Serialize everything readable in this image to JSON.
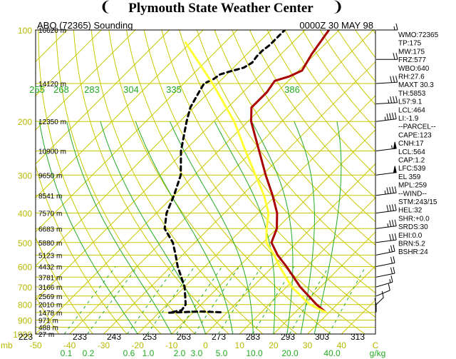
{
  "header": {
    "title": "Plymouth State Weather Center",
    "left_logo": "pinwheel-icon",
    "right_logo": "pinwheel-icon"
  },
  "colors": {
    "background": "#ffffff",
    "isobar_isotherm_grid": "#c8c800",
    "dry_adiabat": "#c8c800",
    "moist_adiabat": "#22aa22",
    "mixing_ratio": "#22aa22",
    "temperature": "#aa0000",
    "dewpoint": "#000000",
    "parcel": "#ffff33",
    "wind_barb": "#000000"
  },
  "chart_data": {
    "type": "line",
    "title_left": "ABQ (72365) Sounding",
    "title_right": "0000Z 30 MAY 98",
    "y_scale": "log-pressure",
    "ylim": [
      1000,
      100
    ],
    "xlim": [
      -50,
      50
    ],
    "pressure_ticks": [
      {
        "p": 100,
        "label": "100"
      },
      {
        "p": 200,
        "label": "200"
      },
      {
        "p": 300,
        "label": "300"
      },
      {
        "p": 400,
        "label": "400"
      },
      {
        "p": 500,
        "label": "500"
      },
      {
        "p": 600,
        "label": "600"
      },
      {
        "p": 700,
        "label": "700"
      },
      {
        "p": 800,
        "label": "800"
      },
      {
        "p": 900,
        "label": "900"
      },
      {
        "p": 1000,
        "label": "1000"
      }
    ],
    "height_labels": [
      {
        "p": 100,
        "label": "16620 m"
      },
      {
        "p": 150,
        "label": "14120 m"
      },
      {
        "p": 200,
        "label": "12350 m"
      },
      {
        "p": 250,
        "label": "10900 m"
      },
      {
        "p": 300,
        "label": "9650 m"
      },
      {
        "p": 350,
        "label": "8541 m"
      },
      {
        "p": 400,
        "label": "7570 m"
      },
      {
        "p": 450,
        "label": "6683 m"
      },
      {
        "p": 500,
        "label": "5880 m"
      },
      {
        "p": 550,
        "label": "5123 m"
      },
      {
        "p": 600,
        "label": "4432 m"
      },
      {
        "p": 650,
        "label": "3781 m"
      },
      {
        "p": 700,
        "label": "3166 m"
      },
      {
        "p": 750,
        "label": "2569 m"
      },
      {
        "p": 800,
        "label": "2010 m"
      },
      {
        "p": 850,
        "label": "1478 m"
      },
      {
        "p": 900,
        "label": "971 m"
      },
      {
        "p": 950,
        "label": "488 m"
      },
      {
        "p": 1000,
        "label": "27 m"
      }
    ],
    "x_ticks": [
      {
        "t": -50,
        "label": "-50"
      },
      {
        "t": -40,
        "label": "-40"
      },
      {
        "t": -30,
        "label": "-30"
      },
      {
        "t": -20,
        "label": "-20"
      },
      {
        "t": -10,
        "label": "-10"
      },
      {
        "t": 0,
        "label": "0"
      },
      {
        "t": 10,
        "label": "10"
      },
      {
        "t": 20,
        "label": "20"
      },
      {
        "t": 30,
        "label": "30"
      },
      {
        "t": 40,
        "label": "40"
      },
      {
        "t": 50,
        "label": "C"
      }
    ],
    "x_unit_prefix": "mb",
    "kelvin_ticks": [
      "223",
      "233",
      "243",
      "253",
      "263",
      "273",
      "283",
      "293",
      "303",
      "313"
    ],
    "mixing_ratio_ticks": [
      "0.1",
      "0.2",
      "0.6",
      "1.0",
      "2.0",
      "3.0",
      "5.0",
      "10.0",
      "20.0",
      "40.0",
      "g/kg"
    ],
    "theta_labels": [
      "255",
      "268",
      "283",
      "304",
      "335",
      "386"
    ],
    "series": [
      {
        "name": "Temperature",
        "color": "#aa0000",
        "points": [
          {
            "p": 848,
            "t": 29.0
          },
          {
            "p": 800,
            "t": 24.0
          },
          {
            "p": 700,
            "t": 14.0
          },
          {
            "p": 600,
            "t": 4.0
          },
          {
            "p": 550,
            "t": -2.0
          },
          {
            "p": 500,
            "t": -7.5
          },
          {
            "p": 450,
            "t": -10.0
          },
          {
            "p": 400,
            "t": -14.5
          },
          {
            "p": 350,
            "t": -21.0
          },
          {
            "p": 300,
            "t": -29.0
          },
          {
            "p": 250,
            "t": -38.0
          },
          {
            "p": 200,
            "t": -49.0
          },
          {
            "p": 180,
            "t": -53.0
          },
          {
            "p": 160,
            "t": -53.0
          },
          {
            "p": 147,
            "t": -54.0
          },
          {
            "p": 142,
            "t": -51.0
          },
          {
            "p": 136,
            "t": -49.0
          },
          {
            "p": 120,
            "t": -51.0
          },
          {
            "p": 100,
            "t": -53.0
          }
        ]
      },
      {
        "name": "Dewpoint",
        "color": "#000000",
        "dashed": true,
        "points": [
          {
            "p": 848,
            "t": -2.0
          },
          {
            "p": 843,
            "t": -8.0
          },
          {
            "p": 851,
            "t": -17.0
          },
          {
            "p": 835,
            "t": -14.0
          },
          {
            "p": 800,
            "t": -14.5
          },
          {
            "p": 700,
            "t": -20.0
          },
          {
            "p": 600,
            "t": -28.0
          },
          {
            "p": 550,
            "t": -32.0
          },
          {
            "p": 500,
            "t": -36.5
          },
          {
            "p": 450,
            "t": -43.0
          },
          {
            "p": 400,
            "t": -47.0
          },
          {
            "p": 350,
            "t": -50.0
          },
          {
            "p": 300,
            "t": -54.0
          },
          {
            "p": 250,
            "t": -61.0
          },
          {
            "p": 200,
            "t": -68.0
          },
          {
            "p": 180,
            "t": -71.0
          },
          {
            "p": 160,
            "t": -73.0
          },
          {
            "p": 150,
            "t": -74.0
          },
          {
            "p": 145,
            "t": -72.5
          },
          {
            "p": 140,
            "t": -72.0
          },
          {
            "p": 137,
            "t": -70.0
          },
          {
            "p": 133,
            "t": -67.0
          },
          {
            "p": 128,
            "t": -66.0
          },
          {
            "p": 122,
            "t": -66.5
          },
          {
            "p": 117,
            "t": -66.5
          },
          {
            "p": 112,
            "t": -66.0
          },
          {
            "p": 100,
            "t": -66.0
          }
        ]
      },
      {
        "name": "Parcel",
        "color": "#ffff33",
        "points": [
          {
            "p": 848,
            "t": 29.0
          },
          {
            "p": 800,
            "t": 22.0
          },
          {
            "p": 700,
            "t": 11.5
          },
          {
            "p": 600,
            "t": 2.0
          },
          {
            "p": 550,
            "t": -3.0
          },
          {
            "p": 500,
            "t": -9.0
          },
          {
            "p": 450,
            "t": -13.0
          },
          {
            "p": 400,
            "t": -17.0
          },
          {
            "p": 350,
            "t": -23.5
          },
          {
            "p": 300,
            "t": -32.0
          },
          {
            "p": 250,
            "t": -42.0
          },
          {
            "p": 200,
            "t": -54.0
          },
          {
            "p": 150,
            "t": -71.5
          },
          {
            "p": 110,
            "t": -91.5
          }
        ]
      }
    ],
    "winds": [
      {
        "p": 848,
        "dir": 180,
        "spd": 10
      },
      {
        "p": 800,
        "dir": 200,
        "spd": 10
      },
      {
        "p": 750,
        "dir": 220,
        "spd": 10
      },
      {
        "p": 700,
        "dir": 230,
        "spd": 15
      },
      {
        "p": 650,
        "dir": 240,
        "spd": 20
      },
      {
        "p": 600,
        "dir": 240,
        "spd": 20
      },
      {
        "p": 550,
        "dir": 240,
        "spd": 25
      },
      {
        "p": 500,
        "dir": 250,
        "spd": 30
      },
      {
        "p": 450,
        "dir": 250,
        "spd": 35
      },
      {
        "p": 400,
        "dir": 250,
        "spd": 40
      },
      {
        "p": 350,
        "dir": 250,
        "spd": 45
      },
      {
        "p": 300,
        "dir": 250,
        "spd": 50
      },
      {
        "p": 250,
        "dir": 250,
        "spd": 55
      },
      {
        "p": 200,
        "dir": 250,
        "spd": 45
      },
      {
        "p": 175,
        "dir": 260,
        "spd": 35
      },
      {
        "p": 150,
        "dir": 260,
        "spd": 30
      },
      {
        "p": 125,
        "dir": 270,
        "spd": 20
      },
      {
        "p": 100,
        "dir": 270,
        "spd": 15
      }
    ],
    "indices": [
      "WMO:72365",
      "TP:175",
      "MW:175",
      "FRZ:577",
      "WBO:640",
      "RH:27.6",
      "MAXT 30.3",
      "TH:5853",
      "L57:9.1",
      "LCL:464",
      "LI:-1.9",
      "--PARCEL--",
      "CAPE:123",
      "CNH:17",
      "LCL:564",
      "CAP:1.2",
      "LFC:539",
      "EL 359",
      "MPL:259",
      "--WIND--",
      "STM:243/15",
      "HEL:32",
      "SHR:+0.0",
      "SRDS:30",
      "EHI:0.0",
      "BRN:5.2",
      "BSHR:24"
    ]
  }
}
